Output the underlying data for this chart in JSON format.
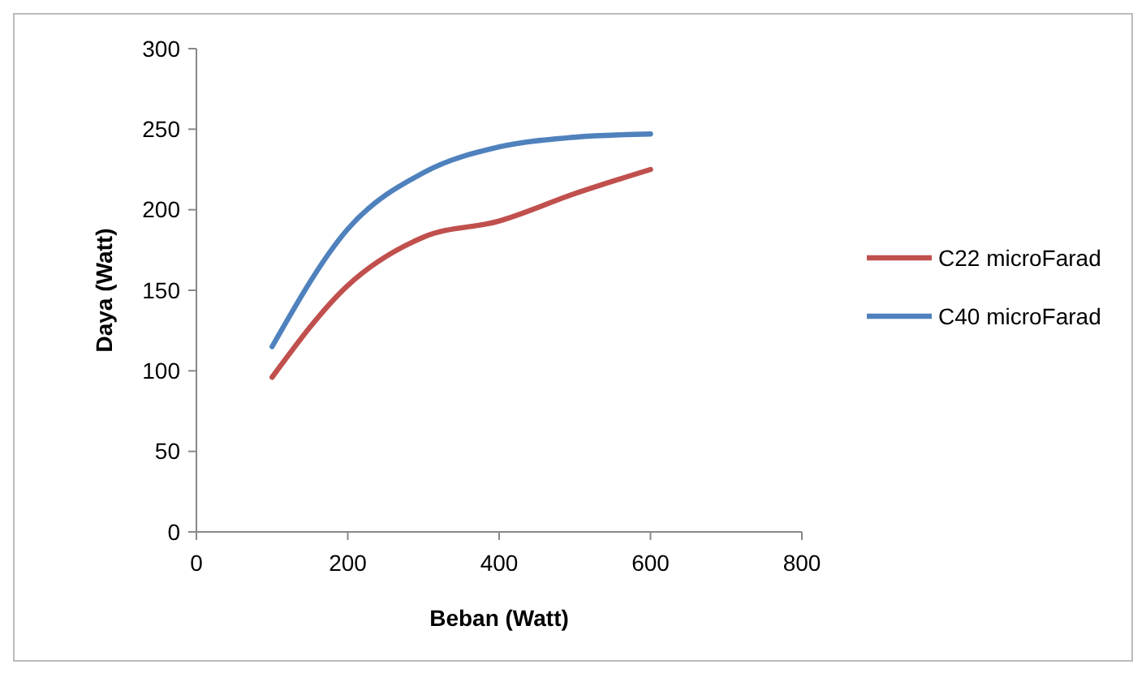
{
  "chart_data": {
    "type": "line",
    "xlabel": "Beban (Watt)",
    "ylabel": "Daya (Watt)",
    "x": [
      100,
      200,
      300,
      400,
      500,
      600
    ],
    "series": [
      {
        "name": "C22 microFarad",
        "color": "#c0504d",
        "values": [
          96,
          153,
          183,
          193,
          210,
          225
        ]
      },
      {
        "name": "C40 microFarad",
        "color": "#4f81bd",
        "values": [
          115,
          188,
          223,
          239,
          245,
          247
        ]
      }
    ],
    "xlim": [
      0,
      800
    ],
    "xticks": [
      0,
      200,
      400,
      600,
      800
    ],
    "ylim": [
      0,
      300
    ],
    "yticks": [
      0,
      50,
      100,
      150,
      200,
      250,
      300
    ],
    "legend": "right",
    "grid": false,
    "marker": "none",
    "line_style": "solid"
  }
}
